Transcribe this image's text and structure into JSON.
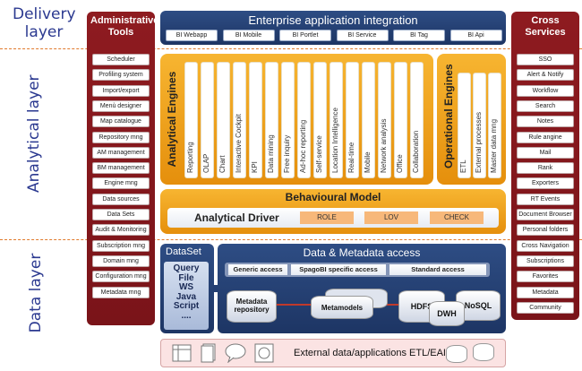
{
  "layers": {
    "delivery": "Delivery layer",
    "analytical": "Analytical layer",
    "data": "Data layer"
  },
  "admin": {
    "title": "Administrative Tools",
    "items": [
      "Scheduler",
      "Profiling system",
      "Import/export",
      "Menù designer",
      "Map catalogue",
      "Repository mng",
      "AM management",
      "BM management",
      "Engine mng",
      "Data sources",
      "Data Sets",
      "Audit & Monitoring",
      "Subscription mng",
      "Domain mng",
      "Configuration mng",
      "Metadata mng"
    ]
  },
  "cross": {
    "title": "Cross Services",
    "items": [
      "SSO",
      "Alert & Notify",
      "Workflow",
      "Search",
      "Notes",
      "Rule angine",
      "Mail",
      "Rank",
      "Exporters",
      "RT Events",
      "Document Browser",
      "Personal folders",
      "Cross Navigation",
      "Subscriptions",
      "Favorites",
      "Metadata",
      "Community"
    ]
  },
  "eai": {
    "title": "Enterprise application integration",
    "items": [
      "BI Webapp",
      "BI Mobile",
      "BI Portlet",
      "BI Service",
      "BI Tag",
      "BI Api"
    ]
  },
  "analytical_engines": {
    "title": "Analytical Engines",
    "items": [
      "Reporting",
      "OLAP",
      "Chart",
      "Interactive Cockpit",
      "KPI",
      "Data mining",
      "Free inquiry",
      "Ad-hoc reporting",
      "Self-service",
      "Location Intelligence",
      "Real-time",
      "Mobile",
      "Network analysis",
      "Office",
      "Collaboration"
    ]
  },
  "operational_engines": {
    "title": "Operational Engines",
    "items": [
      "ETL",
      "External processes",
      "Master data mng"
    ]
  },
  "behavioural": {
    "title": "Behavioural Model",
    "driver": "Analytical Driver",
    "tags": [
      "ROLE",
      "LOV",
      "CHECK"
    ]
  },
  "dataset": {
    "title": "DataSet",
    "text": [
      "Query",
      "File",
      "WS",
      "Java",
      "Script",
      "...."
    ]
  },
  "dma": {
    "title": "Data & Metadata access",
    "access": [
      "Generic access",
      "SpagoBI specific access",
      "Standard access"
    ],
    "stores": {
      "repo": "Metadata repository",
      "meta": "Metamodels",
      "hdfs": "HDFS",
      "dwh": "DWH",
      "nosql": "NoSQL"
    }
  },
  "external": {
    "title": "External data/applications ETL/EAI"
  },
  "colors": {
    "red": "#7f161b",
    "navy": "#243f72",
    "orange": "#f0a01e",
    "label": "#2b3990"
  }
}
